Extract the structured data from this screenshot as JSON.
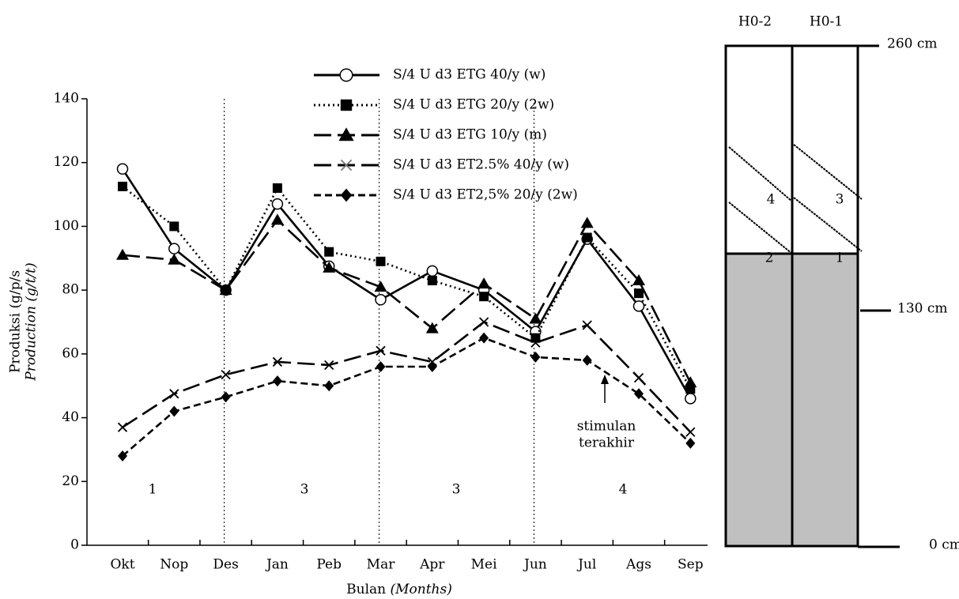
{
  "chart_data": {
    "type": "line",
    "ylabel": [
      "Produksi (g/p/s",
      "Production (g/t/t)"
    ],
    "xlabel": [
      "Bulan",
      "(Months)"
    ],
    "categories": [
      "Okt",
      "Nop",
      "Des",
      "Jan",
      "Peb",
      "Mar",
      "Apr",
      "Mei",
      "Jun",
      "Jul",
      "Ags",
      "Sep"
    ],
    "series": [
      {
        "name": "S/4 U d3 ETG 40/y (w)",
        "color": "#000000",
        "marker": "circle",
        "line_style": "solid",
        "values": [
          118,
          93,
          80,
          107,
          87.5,
          77,
          86,
          80,
          67,
          96,
          75,
          46
        ]
      },
      {
        "name": "S/4 U d3 ETG 20/y (2w)",
        "color": "#000000",
        "marker": "square",
        "line_style": "dotted",
        "values": [
          112.5,
          100,
          80,
          112,
          92,
          89,
          83,
          78,
          65,
          96.5,
          79,
          49
        ]
      },
      {
        "name": "S/4 U d3 ETG 10/y (m)",
        "color": "#000000",
        "marker": "triangle",
        "line_style": "longdash",
        "values": [
          91,
          89.5,
          80,
          102,
          87,
          81,
          68,
          82,
          71,
          101,
          83,
          51
        ]
      },
      {
        "name": "S/4 U d3 ET2.5% 40/y (w)",
        "color": "#000000",
        "marker": "x",
        "line_style": "longdash",
        "values": [
          37,
          47.5,
          53.5,
          57.5,
          56.5,
          61,
          57.5,
          70,
          63.5,
          69,
          52.5,
          35.5
        ]
      },
      {
        "name": "S/4 U d3 ET2,5% 20/y (2w)",
        "color": "#000000",
        "marker": "diamond",
        "line_style": "dashed",
        "values": [
          28,
          42,
          46.5,
          51.5,
          50,
          56,
          56,
          65,
          59,
          58,
          47.5,
          32
        ]
      }
    ],
    "ylim": [
      0,
      140
    ],
    "yticks": [
      0,
      20,
      40,
      60,
      80,
      100,
      120,
      140
    ],
    "period_labels": [
      "1",
      "3",
      "3",
      "4"
    ],
    "annotation": [
      "stimulan",
      "terakhir"
    ]
  },
  "diagram": {
    "columns": [
      "H0-2",
      "H0-1"
    ],
    "levels": [
      "260 cm",
      "130 cm",
      "0 cm"
    ],
    "panels": [
      "4",
      "3",
      "2",
      "1"
    ]
  }
}
